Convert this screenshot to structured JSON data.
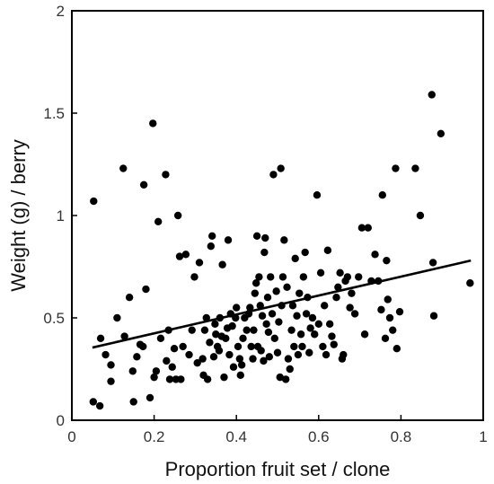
{
  "chart_data": {
    "type": "scatter",
    "title": "",
    "xlabel": "Proportion fruit set / clone",
    "ylabel": "Weight (g) / berry",
    "xlim": [
      0,
      1
    ],
    "ylim": [
      0,
      2
    ],
    "xticks": [
      0,
      0.2,
      0.4,
      0.6,
      0.8,
      1
    ],
    "xtick_labels": [
      "0",
      "0.2",
      "0.4",
      "0.6",
      "0.8",
      "1"
    ],
    "yticks": [
      0,
      0.5,
      1,
      1.5,
      2
    ],
    "ytick_labels": [
      "0",
      "0.5",
      "1",
      "1.5",
      "2"
    ],
    "grid": false,
    "legend": "none",
    "colors": {
      "points": "#000000",
      "trend": "#000000",
      "axes": "#000000"
    },
    "series": [
      {
        "values": [
          [
            0.053,
            1.07
          ],
          [
            0.052,
            0.09
          ],
          [
            0.068,
            0.07
          ],
          [
            0.07,
            0.4
          ],
          [
            0.082,
            0.32
          ],
          [
            0.095,
            0.19
          ],
          [
            0.095,
            0.27
          ],
          [
            0.11,
            0.5
          ],
          [
            0.125,
            1.23
          ],
          [
            0.128,
            0.41
          ],
          [
            0.14,
            0.6
          ],
          [
            0.148,
            0.24
          ],
          [
            0.15,
            0.09
          ],
          [
            0.158,
            0.31
          ],
          [
            0.166,
            0.37
          ],
          [
            0.173,
            0.36
          ],
          [
            0.175,
            1.15
          ],
          [
            0.18,
            0.64
          ],
          [
            0.19,
            0.11
          ],
          [
            0.197,
            1.45
          ],
          [
            0.2,
            0.21
          ],
          [
            0.205,
            0.24
          ],
          [
            0.21,
            0.97
          ],
          [
            0.216,
            0.4
          ],
          [
            0.228,
            1.2
          ],
          [
            0.23,
            0.29
          ],
          [
            0.235,
            0.44
          ],
          [
            0.238,
            0.2
          ],
          [
            0.244,
            0.26
          ],
          [
            0.249,
            0.35
          ],
          [
            0.253,
            0.2
          ],
          [
            0.258,
            1.0
          ],
          [
            0.262,
            0.8
          ],
          [
            0.265,
            0.2
          ],
          [
            0.27,
            0.36
          ],
          [
            0.277,
            0.81
          ],
          [
            0.285,
            0.32
          ],
          [
            0.292,
            0.44
          ],
          [
            0.298,
            0.7
          ],
          [
            0.305,
            0.28
          ],
          [
            0.31,
            0.77
          ],
          [
            0.318,
            0.3
          ],
          [
            0.32,
            0.22
          ],
          [
            0.323,
            0.44
          ],
          [
            0.327,
            0.5
          ],
          [
            0.33,
            0.2
          ],
          [
            0.335,
            0.38
          ],
          [
            0.338,
            0.85
          ],
          [
            0.341,
            0.9
          ],
          [
            0.345,
            0.31
          ],
          [
            0.348,
            0.47
          ],
          [
            0.35,
            0.42
          ],
          [
            0.354,
            0.36
          ],
          [
            0.358,
            0.34
          ],
          [
            0.36,
            0.5
          ],
          [
            0.364,
            0.41
          ],
          [
            0.366,
            0.76
          ],
          [
            0.37,
            0.21
          ],
          [
            0.374,
            0.4
          ],
          [
            0.378,
            0.45
          ],
          [
            0.38,
            0.88
          ],
          [
            0.383,
            0.32
          ],
          [
            0.386,
            0.52
          ],
          [
            0.39,
            0.46
          ],
          [
            0.393,
            0.26
          ],
          [
            0.398,
            0.5
          ],
          [
            0.4,
            0.55
          ],
          [
            0.404,
            0.36
          ],
          [
            0.408,
            0.3
          ],
          [
            0.41,
            0.22
          ],
          [
            0.413,
            0.27
          ],
          [
            0.416,
            0.4
          ],
          [
            0.42,
            0.5
          ],
          [
            0.425,
            0.44
          ],
          [
            0.43,
            0.52
          ],
          [
            0.433,
            0.55
          ],
          [
            0.436,
            0.36
          ],
          [
            0.44,
            0.3
          ],
          [
            0.442,
            0.44
          ],
          [
            0.445,
            0.62
          ],
          [
            0.448,
            0.67
          ],
          [
            0.45,
            0.9
          ],
          [
            0.452,
            0.36
          ],
          [
            0.455,
            0.7
          ],
          [
            0.458,
            0.56
          ],
          [
            0.46,
            0.34
          ],
          [
            0.463,
            0.51
          ],
          [
            0.466,
            0.29
          ],
          [
            0.468,
            0.82
          ],
          [
            0.47,
            0.89
          ],
          [
            0.473,
            0.47
          ],
          [
            0.476,
            0.6
          ],
          [
            0.478,
            0.43
          ],
          [
            0.48,
            0.31
          ],
          [
            0.483,
            0.7
          ],
          [
            0.487,
            0.52
          ],
          [
            0.49,
            1.2
          ],
          [
            0.493,
            0.4
          ],
          [
            0.497,
            0.63
          ],
          [
            0.5,
            0.33
          ],
          [
            0.503,
            0.48
          ],
          [
            0.506,
            0.21
          ],
          [
            0.508,
            1.23
          ],
          [
            0.51,
            0.56
          ],
          [
            0.513,
            0.7
          ],
          [
            0.516,
            0.88
          ],
          [
            0.52,
            0.2
          ],
          [
            0.523,
            0.65
          ],
          [
            0.526,
            0.3
          ],
          [
            0.53,
            0.25
          ],
          [
            0.534,
            0.44
          ],
          [
            0.537,
            0.56
          ],
          [
            0.54,
            0.36
          ],
          [
            0.543,
            0.79
          ],
          [
            0.547,
            0.51
          ],
          [
            0.55,
            0.32
          ],
          [
            0.553,
            0.62
          ],
          [
            0.557,
            0.42
          ],
          [
            0.56,
            0.36
          ],
          [
            0.563,
            0.7
          ],
          [
            0.567,
            0.82
          ],
          [
            0.57,
            0.52
          ],
          [
            0.573,
            0.6
          ],
          [
            0.577,
            0.33
          ],
          [
            0.58,
            0.45
          ],
          [
            0.585,
            0.5
          ],
          [
            0.59,
            0.42
          ],
          [
            0.596,
            1.1
          ],
          [
            0.6,
            0.47
          ],
          [
            0.605,
            0.72
          ],
          [
            0.61,
            0.36
          ],
          [
            0.614,
            0.56
          ],
          [
            0.618,
            0.32
          ],
          [
            0.622,
            0.83
          ],
          [
            0.627,
            0.47
          ],
          [
            0.632,
            0.41
          ],
          [
            0.637,
            0.37
          ],
          [
            0.643,
            0.6
          ],
          [
            0.647,
            0.65
          ],
          [
            0.652,
            0.72
          ],
          [
            0.657,
            0.3
          ],
          [
            0.66,
            0.32
          ],
          [
            0.665,
            0.68
          ],
          [
            0.67,
            0.7
          ],
          [
            0.676,
            0.55
          ],
          [
            0.68,
            0.62
          ],
          [
            0.688,
            0.52
          ],
          [
            0.697,
            0.7
          ],
          [
            0.705,
            0.94
          ],
          [
            0.712,
            0.42
          ],
          [
            0.72,
            0.94
          ],
          [
            0.728,
            0.68
          ],
          [
            0.737,
            0.81
          ],
          [
            0.745,
            0.68
          ],
          [
            0.752,
            0.54
          ],
          [
            0.755,
            1.1
          ],
          [
            0.762,
            0.4
          ],
          [
            0.765,
            0.78
          ],
          [
            0.768,
            0.59
          ],
          [
            0.773,
            0.5
          ],
          [
            0.78,
            0.44
          ],
          [
            0.787,
            1.23
          ],
          [
            0.79,
            0.35
          ],
          [
            0.797,
            0.53
          ],
          [
            0.835,
            1.23
          ],
          [
            0.847,
            1.0
          ],
          [
            0.875,
            1.59
          ],
          [
            0.878,
            0.77
          ],
          [
            0.88,
            0.51
          ],
          [
            0.897,
            1.4
          ],
          [
            0.968,
            0.67
          ]
        ]
      }
    ],
    "trendline": {
      "x": [
        0.05,
        0.97
      ],
      "y": [
        0.355,
        0.78
      ]
    }
  }
}
